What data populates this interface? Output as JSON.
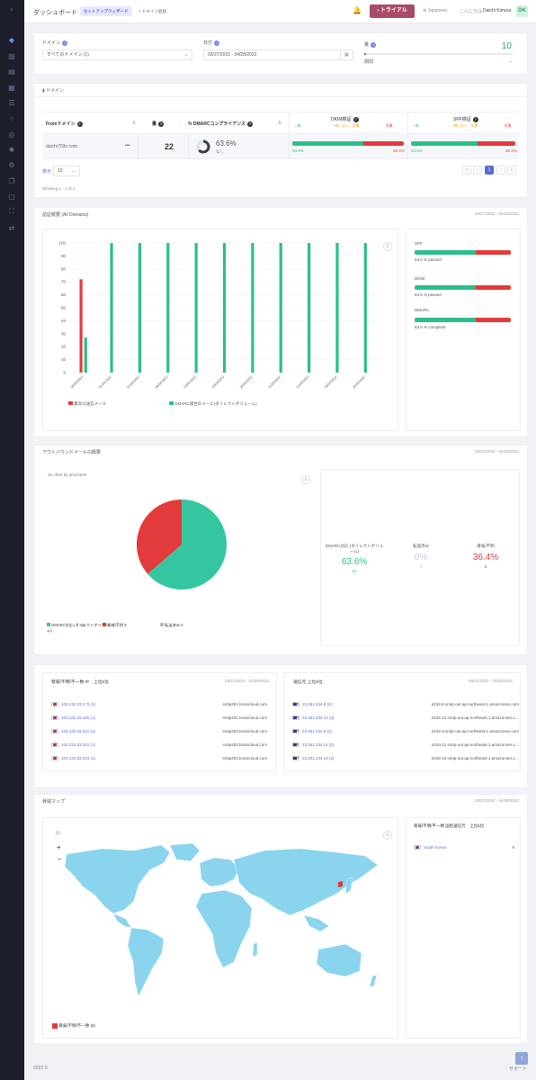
{
  "header": {
    "title": "ダッシュボード",
    "setup_wizard": "セットアップウィザード",
    "add_domain": "+ ドメイン追加",
    "trial": "トライアル",
    "language": "Japanese",
    "greeting": "こんにちは,",
    "user_name": "Daichi Kimura",
    "avatar": "DK"
  },
  "filters": {
    "domain_label": "ドメイン",
    "domain_value": "すべてのドメイン (1)",
    "date_label": "日付",
    "date_value": "03/27/2022 - 04/28/2022",
    "volume_label": "量",
    "volume_value": "10",
    "period_value": "期間"
  },
  "domains": {
    "title": "ドメイン",
    "columns": {
      "from_domain": "Fromドメイン",
      "volume": "量",
      "dmarc": "% DMARCコンプライアンス",
      "dkim": "DKIM検証",
      "spf": "SPF検証"
    },
    "legend_labels": {
      "match": "一致",
      "mismatch": "一致しない・失敗",
      "fail": "失敗"
    },
    "row": {
      "domain": "daichi703n.com",
      "menu": "•••",
      "volume": "22",
      "dmarc_pct": "63.6%",
      "dmarc_note": "なし",
      "dmarc_fraction": 0.636,
      "dkim_pass": "63.6%",
      "dkim_fail": "36.4%",
      "dkim_fraction": 0.636,
      "spf_pass": "63.6%",
      "spf_fail": "36.4%",
      "spf_fraction": 0.636
    },
    "show_label": "表示",
    "show_value": "10",
    "showing": "Showing 1 - 1 of 1",
    "pages": [
      "«",
      "‹",
      "1",
      "›",
      "»"
    ]
  },
  "auth_overview": {
    "title": "認証概要 (All Domains)",
    "date": "03/27/2022 - 04/28/2022",
    "legend_red": "無効な送信メール",
    "legend_green": "DMARC適合のメール(ダイレクトボリューム)",
    "spf_label": "SPF",
    "spf_text": "63.6 % passed",
    "dkim_label": "DKIM",
    "dkim_text": "63.6 % passed",
    "dmarc_label": "DMARC",
    "dmarc_text": "63.6 % compliant",
    "pass_fraction": 0.636,
    "colors": {
      "green": "#2bbf8a",
      "red": "#e33b3b"
    }
  },
  "chart_data": {
    "type": "bar",
    "categories": [
      "29/03/2022",
      "01/04/2022",
      "07/04/2022",
      "08/04/2022",
      "10/04/2022",
      "19/04/2022",
      "20/04/2022",
      "21/04/2022",
      "22/04/2022",
      "23/04/2022",
      "26/04/2022"
    ],
    "series": [
      {
        "name": "無効な送信メール",
        "values": [
          72,
          0,
          0,
          0,
          0,
          0,
          0,
          0,
          0,
          0,
          0
        ]
      },
      {
        "name": "DMARC適合のメール(ダイレクトボリューム)",
        "values": [
          27,
          100,
          100,
          100,
          100,
          100,
          100,
          100,
          100,
          100,
          100
        ]
      }
    ],
    "yticks": [
      "0",
      "10",
      "20",
      "30",
      "40",
      "50",
      "60",
      "70",
      "80",
      "90",
      "100"
    ],
    "ylim": [
      0,
      100
    ],
    "grid": true,
    "legend": "bottom"
  },
  "outbound": {
    "title": "アウトバウンドメールの概要",
    "date": "03/27/2022 - 04/28/2022",
    "amcharts": "JS chart by amCharts",
    "pie_compliant": 14,
    "pie_threat": 8,
    "pie_forwarded": 0,
    "legend_compliant": "DMARC対応 (ダイレクトボリューム)",
    "legend_compliant_val": "14",
    "legend_threat": "脅威/不明",
    "legend_threat_val": "8",
    "legend_forwarded": "転送済み",
    "legend_forwarded_val": "0",
    "stat1_label": "DMARC対応 (ダイレクトボリューム)",
    "stat1_pct": "63.6%",
    "stat1_count": "14",
    "stat2_label": "転送済み",
    "stat2_pct": "0%",
    "stat2_count": "0",
    "stat3_label": "脅威/不明",
    "stat3_pct": "36.4%",
    "stat3_count": "8"
  },
  "threat_ips": {
    "title": "脅威/不明/不一致 IP　上位5位",
    "date": "03/27/2022 - 04/28/2022",
    "rows": [
      {
        "ip": "103.132.33.172 (1)",
        "host": "smtp401.bossicloud.com"
      },
      {
        "ip": "103.132.33.185 (1)",
        "host": "smtp401.bossicloud.com"
      },
      {
        "ip": "103.132.33.221 (1)",
        "host": "smtp403.bossicloud.com"
      },
      {
        "ip": "103.132.33.222 (1)",
        "host": "smtp403.bossicloud.com"
      },
      {
        "ip": "103.132.33.223 (1)",
        "host": "smtp403.bossicloud.com"
      }
    ]
  },
  "senders": {
    "title": "送信元 上位5位",
    "date": "03/27/2022 - 04/28/2022",
    "rows": [
      {
        "ip": "23.251.234.8 (4)",
        "host": "e234-8.smtp-out.ap-northeast-1.amazonses.com"
      },
      {
        "ip": "23.251.234.12 (3)",
        "host": "e234-12.smtp-out.ap-northeast-1.amazonses.c..."
      },
      {
        "ip": "23.251.234.9 (3)",
        "host": "e234-9.smtp-out.ap-northeast-1.amazonses.com"
      },
      {
        "ip": "23.251.234.11 (2)",
        "host": "e234-11.smtp-out.ap-northeast-1.amazonses.c..."
      },
      {
        "ip": "23.251.234.10 (2)",
        "host": "e234-10.smtp-out.ap-northeast-1.amazonses.c..."
      }
    ]
  },
  "threat_map": {
    "title": "脅威マップ",
    "date": "03/27/2022 - 04/28/2022",
    "legend": "脅威/不明/不一致 (8)",
    "top_title": "脅威/不明/不一致 国別送信元　上位5位",
    "country": "South Korea",
    "country_count": "8",
    "ocean": "#ffffff",
    "land": "#8ad4ee",
    "marker": "#e33b3b"
  },
  "footer": {
    "copyright": "2022 ©",
    "support": "サポート"
  }
}
